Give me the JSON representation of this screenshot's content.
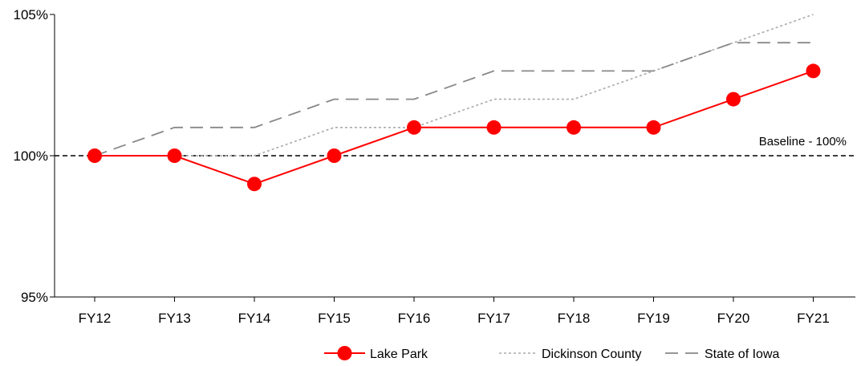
{
  "chart_data": {
    "type": "line",
    "categories": [
      "FY12",
      "FY13",
      "FY14",
      "FY15",
      "FY16",
      "FY17",
      "FY18",
      "FY19",
      "FY20",
      "FY21"
    ],
    "ylim": [
      95,
      105
    ],
    "yticks": [
      "95%",
      "100%",
      "105%"
    ],
    "ytick_values": [
      95,
      100,
      105
    ],
    "baseline": {
      "value": 100,
      "label": "Baseline - 100%",
      "color": "#000000",
      "style": "dashed"
    },
    "series": [
      {
        "name": "Lake Park",
        "values": [
          100,
          100,
          99,
          100,
          101,
          101,
          101,
          101,
          102,
          103
        ],
        "color": "#ff0000",
        "style": "solid-markers"
      },
      {
        "name": "Dickinson County",
        "values": [
          100,
          100,
          100,
          101,
          101,
          102,
          102,
          103,
          104,
          105
        ],
        "color": "#aaaaaa",
        "style": "dotted"
      },
      {
        "name": "State of Iowa",
        "values": [
          100,
          101,
          101,
          102,
          102,
          103,
          103,
          103,
          104,
          104
        ],
        "color": "#888888",
        "style": "dashed"
      }
    ],
    "legend_position": "bottom-right",
    "grid": false
  }
}
